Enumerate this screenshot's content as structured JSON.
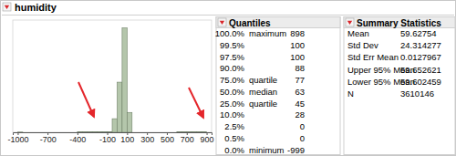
{
  "header": {
    "title": "humidity"
  },
  "chart_data": {
    "type": "histogram",
    "bins": [
      -1000,
      -950,
      -900,
      -850,
      -800,
      -750,
      -700,
      -650,
      -600,
      -550,
      -500,
      -450,
      -400,
      -350,
      -300,
      -250,
      -200,
      -150,
      -100,
      -50,
      0,
      50,
      100,
      150,
      200,
      250,
      300,
      350,
      400,
      450,
      500,
      550,
      600,
      650,
      700,
      750,
      800,
      850,
      900
    ],
    "values": [
      4000,
      0,
      0,
      0,
      0,
      0,
      0,
      0,
      0,
      0,
      0,
      0,
      6000,
      6000,
      6000,
      6000,
      6000,
      6000,
      6000,
      260000,
      960000,
      2000000,
      380000,
      0,
      0,
      0,
      0,
      0,
      0,
      0,
      0,
      0,
      6000,
      6000,
      6000,
      6000,
      6000,
      6000
    ],
    "color": "#b4c6ab",
    "xlim": [
      -1050,
      950
    ],
    "xticks": [
      -1000,
      -700,
      -400,
      -100,
      100,
      300,
      500,
      700,
      900
    ],
    "ylim": [
      0,
      2150000
    ],
    "tick_labels": "x"
  },
  "quantiles": {
    "title": "Quantiles",
    "rows": [
      {
        "quantile": "100.0%",
        "label": "maximum",
        "value": 898
      },
      {
        "quantile": "99.5%",
        "value": 100
      },
      {
        "quantile": "97.5%",
        "value": 100
      },
      {
        "quantile": "90.0%",
        "value": 88
      },
      {
        "quantile": "75.0%",
        "label": "quartile",
        "value": 77
      },
      {
        "quantile": "50.0%",
        "label": "median",
        "value": 63
      },
      {
        "quantile": "25.0%",
        "label": "quartile",
        "value": 45
      },
      {
        "quantile": "10.0%",
        "value": 28
      },
      {
        "quantile": "2.5%",
        "value": 0
      },
      {
        "quantile": "0.5%",
        "value": 0
      },
      {
        "quantile": "0.0%",
        "label": "minimum",
        "value": -999
      }
    ]
  },
  "summary": {
    "title": "Summary Statistics",
    "rows": [
      {
        "label": "Mean",
        "value": 59.62754
      },
      {
        "label": "Std Dev",
        "value": 24.314277
      },
      {
        "label": "Std Err Mean",
        "value": 0.0127967
      },
      {
        "label": "Upper 95% Mean",
        "value": 59.652621
      },
      {
        "label": "Lower 95% Mean",
        "value": 59.602459
      },
      {
        "label": "N",
        "value": 3610146
      }
    ]
  }
}
